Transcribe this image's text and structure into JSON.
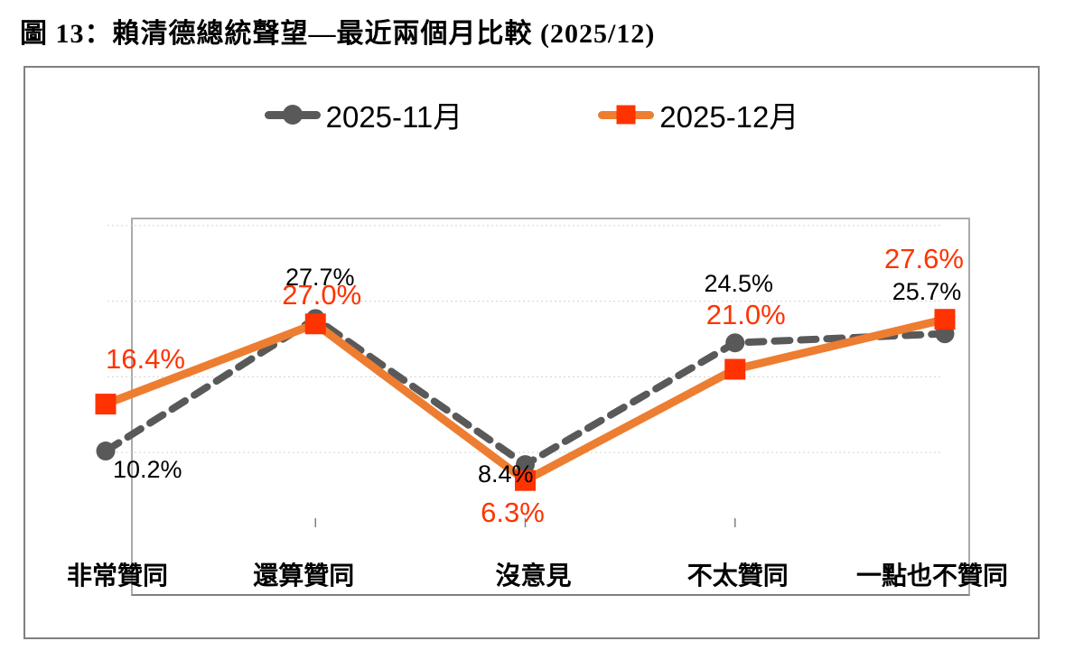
{
  "title": "圖 13：賴清德總統聲望—最近兩個月比較 (2025/12)",
  "colors": {
    "nov_series": "#595959",
    "dec_line": "#ED7D31",
    "dec_marker": "#FF3300",
    "dec_label": "#FF3300",
    "nov_label": "#000000",
    "gridline": "#D9D9D9",
    "axis": "#7F7F7F",
    "plot_border": "#ABABAB",
    "frame_border": "#808080"
  },
  "chart_data": {
    "type": "line",
    "title": "圖 13：賴清德總統聲望—最近兩個月比較 (2025/12)",
    "categories": [
      "非常贊同",
      "還算贊同",
      "沒意見",
      "不太贊同",
      "一點也不贊同"
    ],
    "series": [
      {
        "name": "2025-11月",
        "values": [
          10.2,
          27.7,
          8.4,
          24.5,
          25.7
        ],
        "labels": [
          "10.2%",
          "27.7%",
          "8.4%",
          "24.5%",
          "25.7%"
        ],
        "color": "#595959",
        "line_style": "dashed",
        "marker": "circle",
        "label_color": "#000000"
      },
      {
        "name": "2025-12月",
        "values": [
          16.4,
          27.0,
          6.3,
          21.0,
          27.6
        ],
        "labels": [
          "16.4%",
          "27.0%",
          "6.3%",
          "21.0%",
          "27.6%"
        ],
        "color": "#ED7D31",
        "marker_color": "#FF3300",
        "line_style": "solid",
        "marker": "square",
        "label_color": "#FF3300"
      }
    ],
    "xlabel": "",
    "ylabel": "",
    "ylim": [
      0,
      50
    ],
    "gridlines": [
      10,
      20,
      30,
      40
    ],
    "grid": "horizontal-dotted",
    "y_axis_labels_visible": false,
    "legend_position": "top"
  }
}
